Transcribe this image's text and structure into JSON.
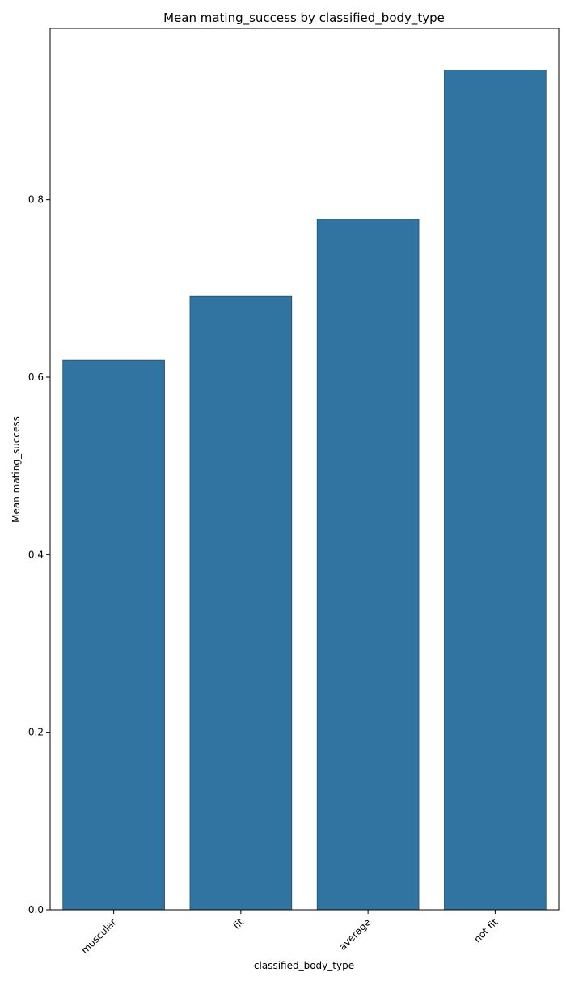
{
  "chart_data": {
    "type": "bar",
    "title": "Mean mating_success by classified_body_type",
    "xlabel": "classified_body_type",
    "ylabel": "Mean mating_success",
    "categories": [
      "muscular",
      "fit",
      "average",
      "not fit"
    ],
    "values": [
      0.619,
      0.691,
      0.778,
      0.946
    ],
    "ylim": [
      0,
      0.993
    ],
    "yticks": [
      0.0,
      0.2,
      0.4,
      0.6,
      0.8
    ],
    "ytick_labels": [
      "0.0",
      "0.2",
      "0.4",
      "0.6",
      "0.8"
    ],
    "grid": false,
    "legend": "none",
    "bar_color": "#3274a1",
    "bar_edge_color": "#1f4e6e"
  }
}
